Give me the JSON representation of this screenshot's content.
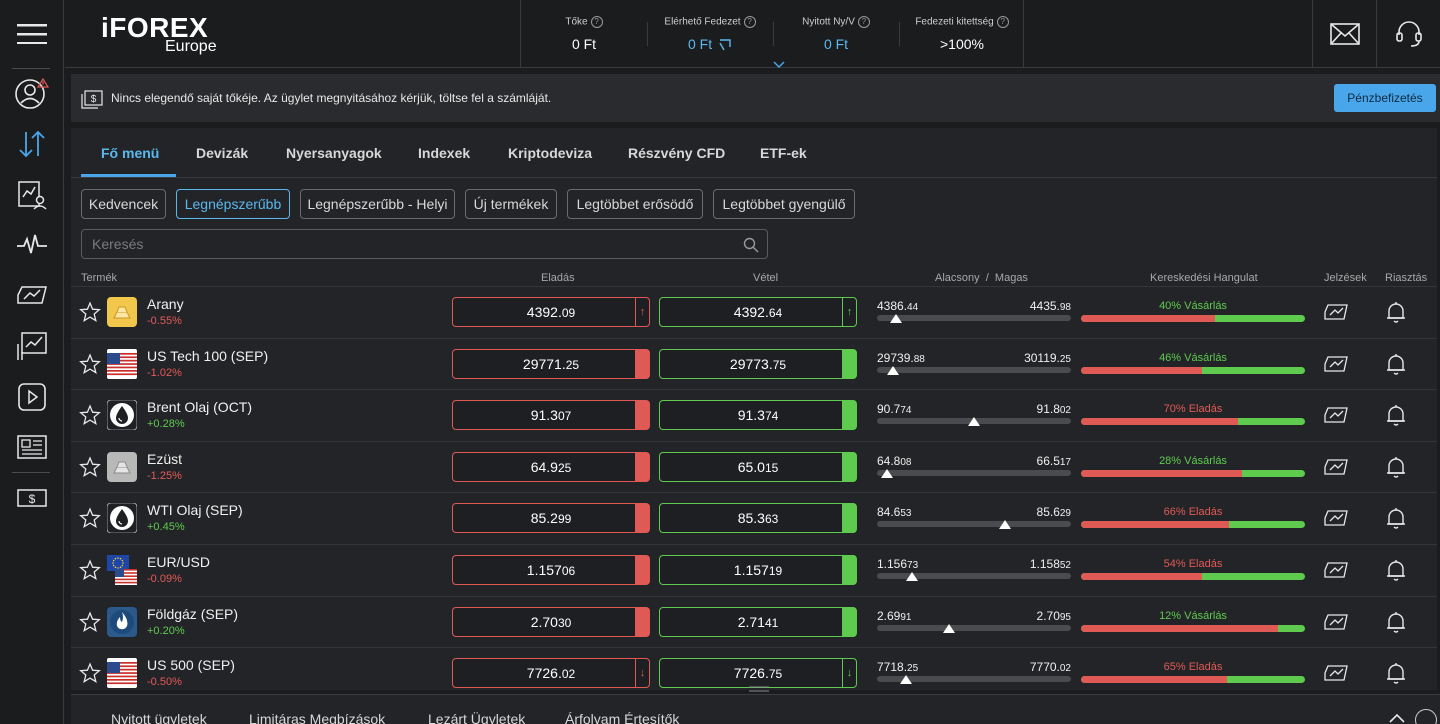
{
  "topbar": {
    "logo_main": "iFOREX",
    "logo_sub": "Europe",
    "stats": [
      {
        "label": "Tőke",
        "value": "0 Ft"
      },
      {
        "label": "Elérhető Fedezet",
        "value": "0 Ft"
      },
      {
        "label": "Nyitott Ny/V",
        "value": "0 Ft"
      },
      {
        "label": "Fedezeti kitettség",
        "value": ">100%"
      }
    ]
  },
  "sidebar": {
    "items": [
      "menu-icon",
      "profile-icon",
      "trade-arrows-icon",
      "analysis-icon",
      "pulse-icon",
      "signals-icon",
      "chart-icon",
      "video-icon",
      "news-icon",
      "deposit-icon"
    ]
  },
  "notice": {
    "text": "Nincs elegendő saját tőkéje. Az ügylet megnyitásához kérjük, töltse fel a számláját.",
    "button": "Pénzbefizetés"
  },
  "tabs": [
    "Fő menü",
    "Devizák",
    "Nyersanyagok",
    "Indexek",
    "Kriptodeviza",
    "Részvény CFD",
    "ETF-ek"
  ],
  "chips": [
    "Kedvencek",
    "Legnépszerűbb",
    "Legnépszerűbb - Helyi",
    "Új termékek",
    "Legtöbbet erősödő",
    "Legtöbbet gyengülő"
  ],
  "search": {
    "placeholder": "Keresés"
  },
  "columns": {
    "product": "Termék",
    "sell": "Eladás",
    "buy": "Vétel",
    "lowhigh": "Alacsony  /  Magas",
    "sentiment": "Kereskedési Hangulat",
    "signals": "Jelzések",
    "alerts": "Riasztás"
  },
  "instruments": [
    {
      "name": "Arany",
      "change": "-0.55%",
      "dir": "neg",
      "icon": "gold-bar-icon",
      "sell": "4392.09",
      "buy": "4392.64",
      "arrow": "outline",
      "sell_glyph": "↑",
      "buy_glyph": "↑",
      "low": "4386.44",
      "high": "4435.98",
      "pos": 0.1,
      "sentiment": "40% Vásárlás",
      "buy_pct": 0.4,
      "sent_type": "buy"
    },
    {
      "name": "US Tech 100 (SEP)",
      "change": "-1.02%",
      "dir": "neg",
      "icon": "us-flag-icon",
      "sell": "29771.25",
      "buy": "29773.75",
      "arrow": "solid",
      "sell_glyph": "",
      "buy_glyph": "",
      "low": "29739.88",
      "high": "30119.25",
      "pos": 0.08,
      "sentiment": "46% Vásárlás",
      "buy_pct": 0.46,
      "sent_type": "buy"
    },
    {
      "name": "Brent Olaj (OCT)",
      "change": "+0.28%",
      "dir": "pos",
      "icon": "oil-drop-icon",
      "sell": "91.307",
      "buy": "91.374",
      "arrow": "solid",
      "sell_glyph": "",
      "buy_glyph": "",
      "low": "90.774",
      "high": "91.802",
      "pos": 0.5,
      "sentiment": "70% Eladás",
      "buy_pct": 0.3,
      "sent_type": "sell"
    },
    {
      "name": "Ezüst",
      "change": "-1.25%",
      "dir": "neg",
      "icon": "silver-bar-icon",
      "sell": "64.925",
      "buy": "65.015",
      "arrow": "solid",
      "sell_glyph": "",
      "buy_glyph": "",
      "low": "64.808",
      "high": "66.517",
      "pos": 0.05,
      "sentiment": "28% Vásárlás",
      "buy_pct": 0.28,
      "sent_type": "buy"
    },
    {
      "name": "WTI Olaj (SEP)",
      "change": "+0.45%",
      "dir": "pos",
      "icon": "oil-drop-icon",
      "sell": "85.299",
      "buy": "85.363",
      "arrow": "solid",
      "sell_glyph": "",
      "buy_glyph": "",
      "low": "84.653",
      "high": "85.629",
      "pos": 0.66,
      "sentiment": "66% Eladás",
      "buy_pct": 0.34,
      "sent_type": "sell"
    },
    {
      "name": "EUR/USD",
      "change": "-0.09%",
      "dir": "neg",
      "icon": "eu-us-flag-icon",
      "sell": "1.15706",
      "buy": "1.15719",
      "arrow": "solid",
      "sell_glyph": "",
      "buy_glyph": "",
      "low": "1.15673",
      "high": "1.15852",
      "pos": 0.18,
      "sentiment": "54% Eladás",
      "buy_pct": 0.46,
      "sent_type": "sell"
    },
    {
      "name": "Földgáz (SEP)",
      "change": "+0.20%",
      "dir": "pos",
      "icon": "flame-icon",
      "sell": "2.7030",
      "buy": "2.7141",
      "arrow": "solid",
      "sell_glyph": "",
      "buy_glyph": "",
      "low": "2.6991",
      "high": "2.7095",
      "pos": 0.37,
      "sentiment": "12% Vásárlás",
      "buy_pct": 0.12,
      "sent_type": "buy"
    },
    {
      "name": "US 500 (SEP)",
      "change": "-0.50%",
      "dir": "neg",
      "icon": "us-flag-icon",
      "sell": "7726.02",
      "buy": "7726.75",
      "arrow": "outline",
      "sell_glyph": "↓",
      "buy_glyph": "↓",
      "low": "7718.25",
      "high": "7770.02",
      "pos": 0.15,
      "sentiment": "65% Eladás",
      "buy_pct": 0.35,
      "sent_type": "sell"
    }
  ],
  "bottom_tabs": [
    "Nyitott ügyletek",
    "Limitáras Megbízások",
    "Lezárt Ügyletek",
    "Árfolyam Értesítők"
  ],
  "colors": {
    "accent": "#4aa6ea",
    "sell": "#e05a55",
    "buy": "#5ecb4f",
    "background": "#1b1c1e",
    "panel": "#232427"
  }
}
